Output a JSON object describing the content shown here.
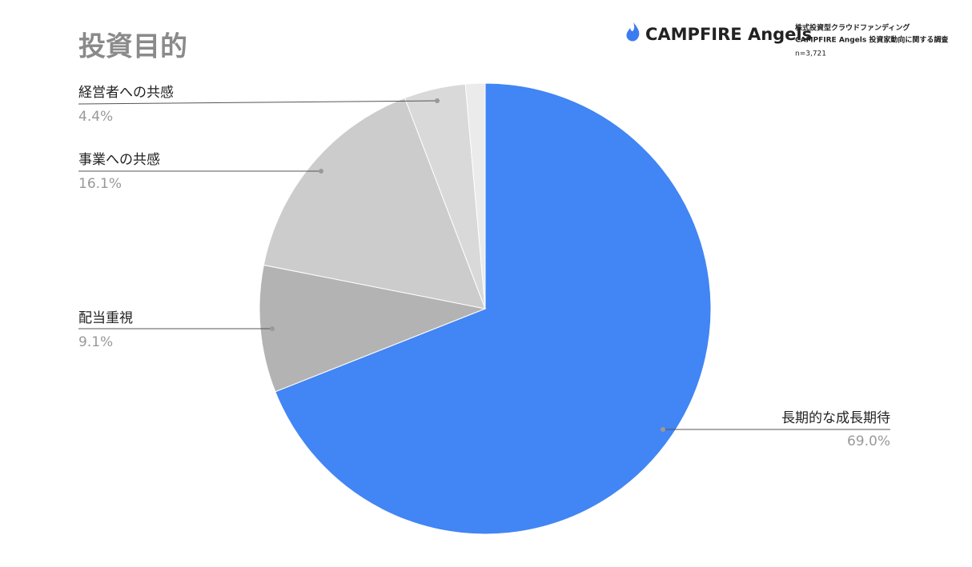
{
  "chart_data": {
    "type": "pie",
    "title": "投資目的",
    "brand": "CAMPFIRE Angels",
    "source": [
      "株式投資型クラウドファンディング",
      "CAMPFIRE Angels 投資家動向に関する調査",
      "n=3,721"
    ],
    "categories": [
      "長期的な成長期待",
      "配当重視",
      "事業への共感",
      "経営者への共感",
      null
    ],
    "values": [
      69.0,
      9.1,
      16.1,
      4.4,
      1.4
    ],
    "value_labels": [
      "69.0%",
      "9.1%",
      "16.1%",
      "4.4%",
      null
    ],
    "colors": [
      "#4285f4",
      "#b3b3b3",
      "#cccccc",
      "#d9d9d9",
      "#ebebeb"
    ]
  }
}
